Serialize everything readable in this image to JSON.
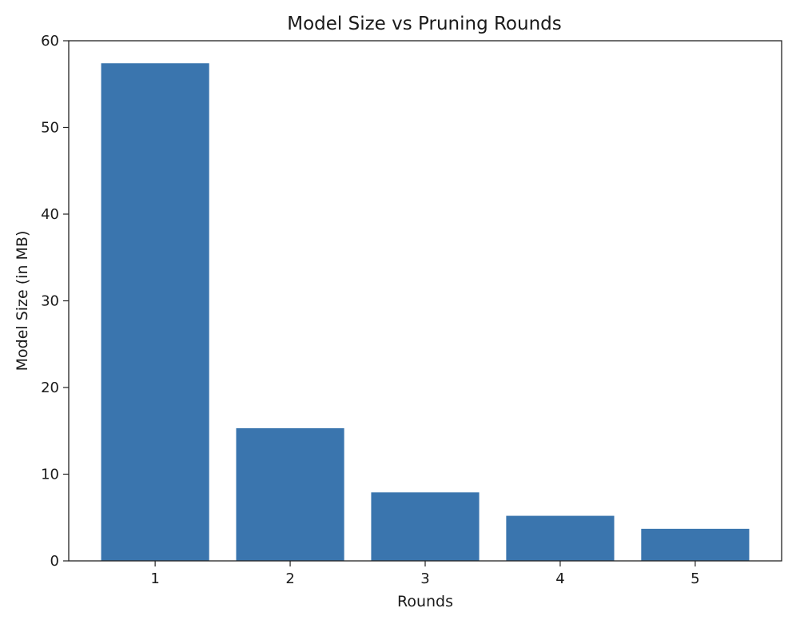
{
  "chart_data": {
    "type": "bar",
    "title": "Model Size vs Pruning Rounds",
    "xlabel": "Rounds",
    "ylabel": "Model Size (in MB)",
    "categories": [
      "1",
      "2",
      "3",
      "4",
      "5"
    ],
    "values": [
      57.4,
      15.3,
      7.9,
      5.2,
      3.7
    ],
    "ylim": [
      0,
      60
    ],
    "yticks": [
      0,
      10,
      20,
      30,
      40,
      50,
      60
    ],
    "ytick_labels": [
      "0",
      "10",
      "20",
      "30",
      "40",
      "50",
      "60"
    ],
    "grid": false,
    "legend": "none",
    "bar_color": "#3a75ae"
  }
}
